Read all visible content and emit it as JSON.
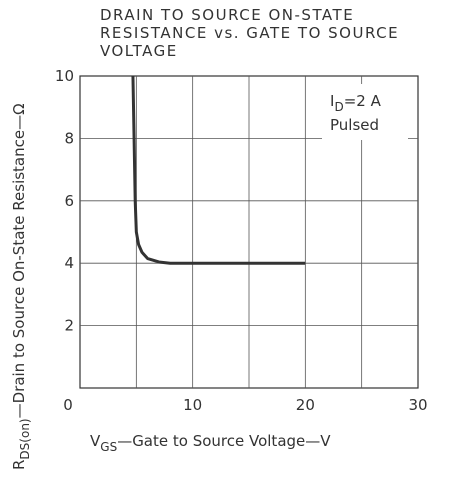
{
  "chart_data": {
    "type": "line",
    "title": [
      "DRAIN TO SOURCE ON-STATE",
      "RESISTANCE vs. GATE TO SOURCE",
      "VOLTAGE"
    ],
    "x_label": {
      "symbol": "V",
      "subscript": "GS",
      "text": "—Gate to Source Voltage—V"
    },
    "y_label": {
      "symbol": "R",
      "subscript": "DS(on)",
      "text": "—Drain to Source On-State Resistance—Ω"
    },
    "annotation": {
      "symbol": "I",
      "subscript": "D",
      "text": "=2 A",
      "note": "Pulsed"
    },
    "series": [
      {
        "color": "#333333",
        "x": [
          4.7,
          4.8,
          4.9,
          5.0,
          5.2,
          5.5,
          6,
          7,
          8,
          20
        ],
        "values": [
          10,
          8,
          6,
          5,
          4.6,
          4.35,
          4.15,
          4.04,
          4,
          4
        ]
      }
    ],
    "xlim": [
      0,
      30
    ],
    "ylim": [
      0,
      10
    ],
    "xticks": [
      0,
      10,
      20,
      30
    ],
    "yticks": [
      2,
      4,
      6,
      8,
      10
    ],
    "xgrid": [
      5,
      10,
      15,
      20,
      25
    ],
    "ygrid": [
      2,
      4,
      6,
      8
    ],
    "grid": true
  }
}
